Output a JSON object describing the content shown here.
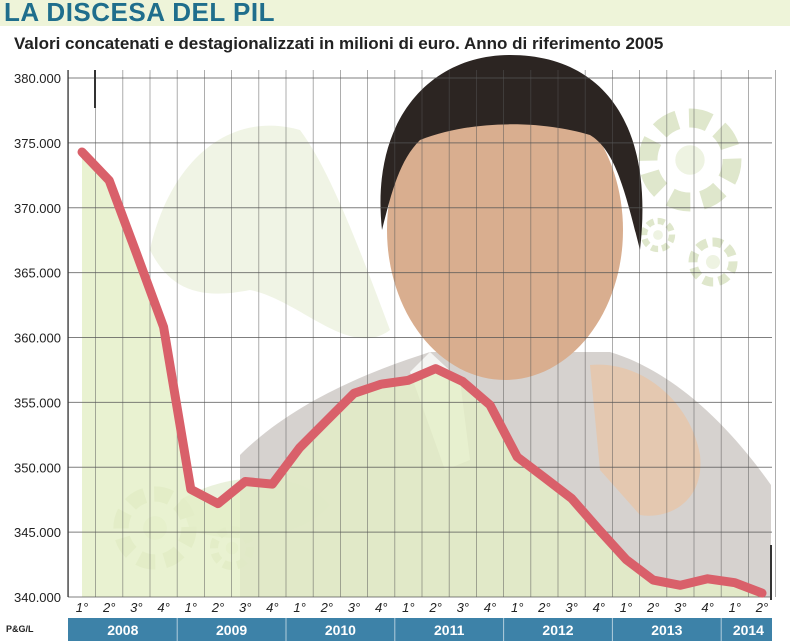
{
  "header": {
    "title": "LA DISCESA DEL PIL",
    "subtitle": "Valori concatenati e destagionalizzati in milioni di euro. Anno di riferimento 2005",
    "source": "P&G/L"
  },
  "colors": {
    "line": "#d9606a",
    "area": "#e3efc6",
    "grid": "#555555",
    "year_band": "#3d82a8",
    "title": "#1f6e8c"
  },
  "chart_data": {
    "type": "line",
    "title": "LA DISCESA DEL PIL",
    "subtitle": "Valori concatenati e destagionalizzati in milioni di euro. Anno di riferimento 2005",
    "xlabel": "",
    "ylabel": "",
    "ylim": [
      340000,
      380000
    ],
    "yticks": [
      "380.000",
      "375.000",
      "370.000",
      "365.000",
      "360.000",
      "355.000",
      "350.000",
      "345.000",
      "340.000"
    ],
    "ytick_values": [
      380000,
      375000,
      370000,
      365000,
      360000,
      355000,
      350000,
      345000,
      340000
    ],
    "quarters": [
      "1°",
      "2°",
      "3°",
      "4°",
      "1°",
      "2°",
      "3°",
      "4°",
      "1°",
      "2°",
      "3°",
      "4°",
      "1°",
      "2°",
      "3°",
      "4°",
      "1°",
      "2°",
      "3°",
      "4°",
      "1°",
      "2°",
      "3°",
      "4°",
      "1°",
      "2°"
    ],
    "years": [
      "2008",
      "2009",
      "2010",
      "2011",
      "2012",
      "2013",
      "2014"
    ],
    "grid": true,
    "values": [
      374300,
      372100,
      366500,
      360800,
      348300,
      347200,
      348900,
      348700,
      351500,
      353600,
      355700,
      356400,
      356700,
      357600,
      356600,
      354800,
      350800,
      349200,
      347600,
      345200,
      342900,
      341300,
      340900,
      341400,
      341100,
      340300
    ]
  }
}
